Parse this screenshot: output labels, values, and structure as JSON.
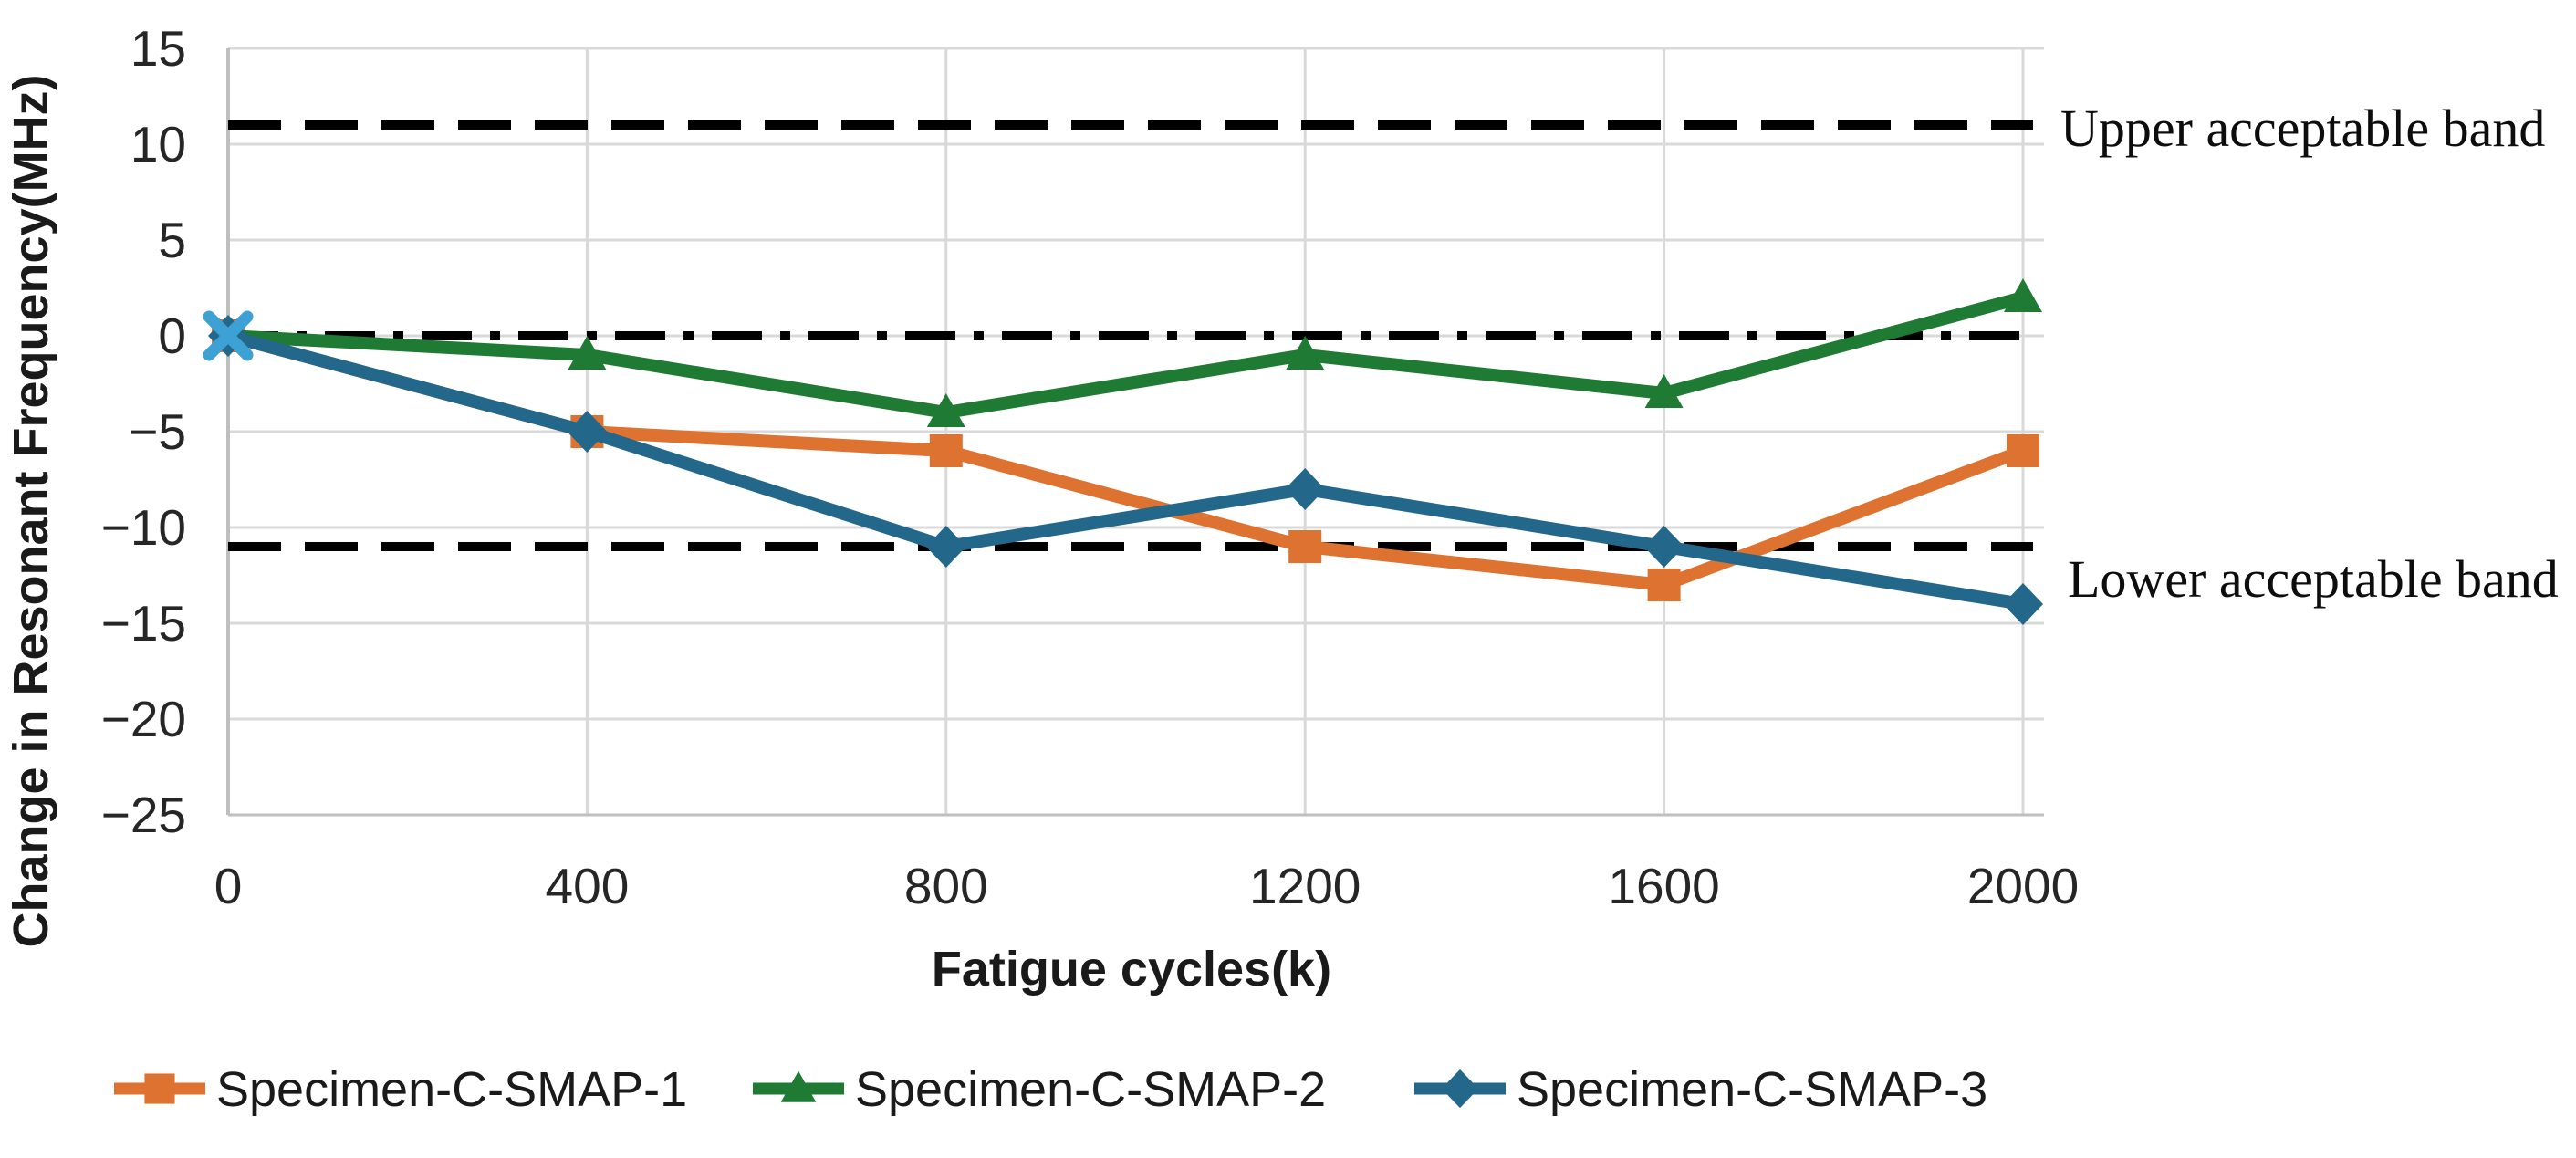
{
  "figure": {
    "background": "#ffffff",
    "plot_background": "#ffffff",
    "gridline_color": "#d9d9d9",
    "axis_line_color": "#bfbfbf"
  },
  "annotations": {
    "upper_band": "Upper acceptable band",
    "lower_band": "Lower acceptable band"
  },
  "chart_data": {
    "type": "line",
    "title": "",
    "xlabel": "Fatigue cycles(k)",
    "ylabel": "Change in Resonant Frequency(MHz)",
    "x": [
      0,
      400,
      800,
      1200,
      1600,
      2000
    ],
    "xtick_labels": [
      "0",
      "400",
      "800",
      "1200",
      "1600",
      "2000"
    ],
    "yticks": [
      15,
      10,
      5,
      0,
      -5,
      -10,
      -15,
      -20,
      -25
    ],
    "ytick_labels": [
      "15",
      "10",
      "5",
      "0",
      "−5",
      "−10",
      "−15",
      "−20",
      "−25"
    ],
    "xlim": [
      0,
      2000
    ],
    "ylim": [
      -25,
      15
    ],
    "grid": true,
    "legend_position": "bottom",
    "series": [
      {
        "name": "Specimen-C-SMAP-1",
        "color": "#de7230",
        "marker": "square",
        "values": [
          0,
          -5,
          -6,
          -11,
          -13,
          -6
        ]
      },
      {
        "name": "Specimen-C-SMAP-2",
        "color": "#1f7b33",
        "marker": "triangle",
        "values": [
          0,
          -1,
          -4,
          -1,
          -3,
          2
        ]
      },
      {
        "name": "Specimen-C-SMAP-3",
        "color": "#23688a",
        "marker": "diamond",
        "values": [
          0,
          -5,
          -11,
          -8,
          -11,
          -14
        ]
      }
    ],
    "reference_lines": [
      {
        "value": 11,
        "style": "dashed",
        "color": "#000000",
        "label": "Upper acceptable band"
      },
      {
        "value": 0,
        "style": "dash-dot",
        "color": "#000000",
        "label": ""
      },
      {
        "value": -11,
        "style": "dashed",
        "color": "#000000",
        "label": "Lower acceptable band"
      }
    ],
    "extra_markers": [
      {
        "x": 0,
        "y": 0,
        "marker": "x",
        "color": "#3ea1d5",
        "note": "overlapping start marker at origin"
      }
    ]
  }
}
